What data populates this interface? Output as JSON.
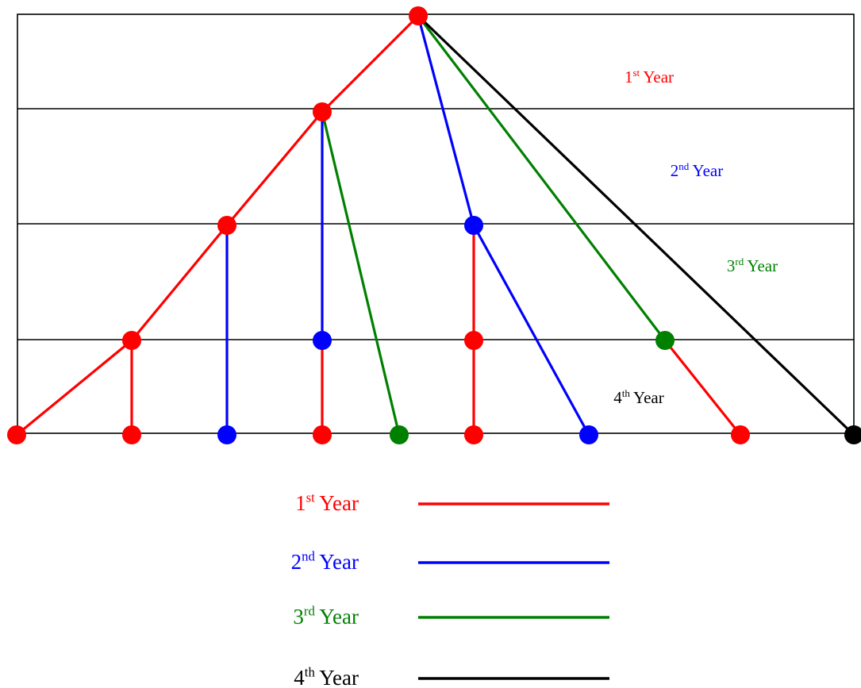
{
  "colors": {
    "first": "#ff0000",
    "second": "#0000ff",
    "third": "#008000",
    "fourth": "#000000",
    "grid": "#000000",
    "background": "#ffffff"
  },
  "row_labels": [
    {
      "number": "1",
      "suffix": "st",
      "word": "Year",
      "color_key": "first"
    },
    {
      "number": "2",
      "suffix": "nd",
      "word": "Year",
      "color_key": "second"
    },
    {
      "number": "3",
      "suffix": "rd",
      "word": "Year",
      "color_key": "third"
    },
    {
      "number": "4",
      "suffix": "th",
      "word": "Year",
      "color_key": "fourth"
    }
  ],
  "legend": [
    {
      "number": "1",
      "suffix": "st",
      "word": "Year",
      "color_key": "first"
    },
    {
      "number": "2",
      "suffix": "nd",
      "word": "Year",
      "color_key": "second"
    },
    {
      "number": "3",
      "suffix": "rd",
      "word": "Year",
      "color_key": "third"
    },
    {
      "number": "4",
      "suffix": "th",
      "word": "Year",
      "color_key": "fourth"
    }
  ],
  "tree": {
    "nodes": [
      {
        "id": "root",
        "level": 0,
        "color_key": "first"
      },
      {
        "id": "a",
        "level": 1,
        "color_key": "first"
      },
      {
        "id": "b",
        "level": 2,
        "color_key": "first"
      },
      {
        "id": "c",
        "level": 2,
        "color_key": "second"
      },
      {
        "id": "d",
        "level": 3,
        "color_key": "first"
      },
      {
        "id": "e",
        "level": 3,
        "color_key": "second"
      },
      {
        "id": "f",
        "level": 3,
        "color_key": "first"
      },
      {
        "id": "g",
        "level": 3,
        "color_key": "third"
      },
      {
        "id": "l1",
        "level": 4,
        "color_key": "first"
      },
      {
        "id": "l2",
        "level": 4,
        "color_key": "first"
      },
      {
        "id": "l3",
        "level": 4,
        "color_key": "second"
      },
      {
        "id": "l4",
        "level": 4,
        "color_key": "first"
      },
      {
        "id": "l5",
        "level": 4,
        "color_key": "third"
      },
      {
        "id": "l6",
        "level": 4,
        "color_key": "first"
      },
      {
        "id": "l7",
        "level": 4,
        "color_key": "second"
      },
      {
        "id": "l8",
        "level": 4,
        "color_key": "first"
      },
      {
        "id": "l9",
        "level": 4,
        "color_key": "fourth"
      }
    ],
    "edges": [
      {
        "from": "root",
        "to": "a",
        "color_key": "first"
      },
      {
        "from": "root",
        "to": "c",
        "color_key": "second"
      },
      {
        "from": "root",
        "to": "g",
        "color_key": "third"
      },
      {
        "from": "root",
        "to": "l9",
        "color_key": "fourth"
      },
      {
        "from": "a",
        "to": "b",
        "color_key": "first"
      },
      {
        "from": "a",
        "to": "e",
        "color_key": "second"
      },
      {
        "from": "a",
        "to": "l5",
        "color_key": "third"
      },
      {
        "from": "b",
        "to": "d",
        "color_key": "first"
      },
      {
        "from": "b",
        "to": "l3",
        "color_key": "second"
      },
      {
        "from": "c",
        "to": "f",
        "color_key": "first"
      },
      {
        "from": "c",
        "to": "l7",
        "color_key": "second"
      },
      {
        "from": "d",
        "to": "l1",
        "color_key": "first"
      },
      {
        "from": "d",
        "to": "l2",
        "color_key": "first"
      },
      {
        "from": "e",
        "to": "l4",
        "color_key": "first"
      },
      {
        "from": "f",
        "to": "l6",
        "color_key": "first"
      },
      {
        "from": "g",
        "to": "l8",
        "color_key": "first"
      }
    ]
  }
}
